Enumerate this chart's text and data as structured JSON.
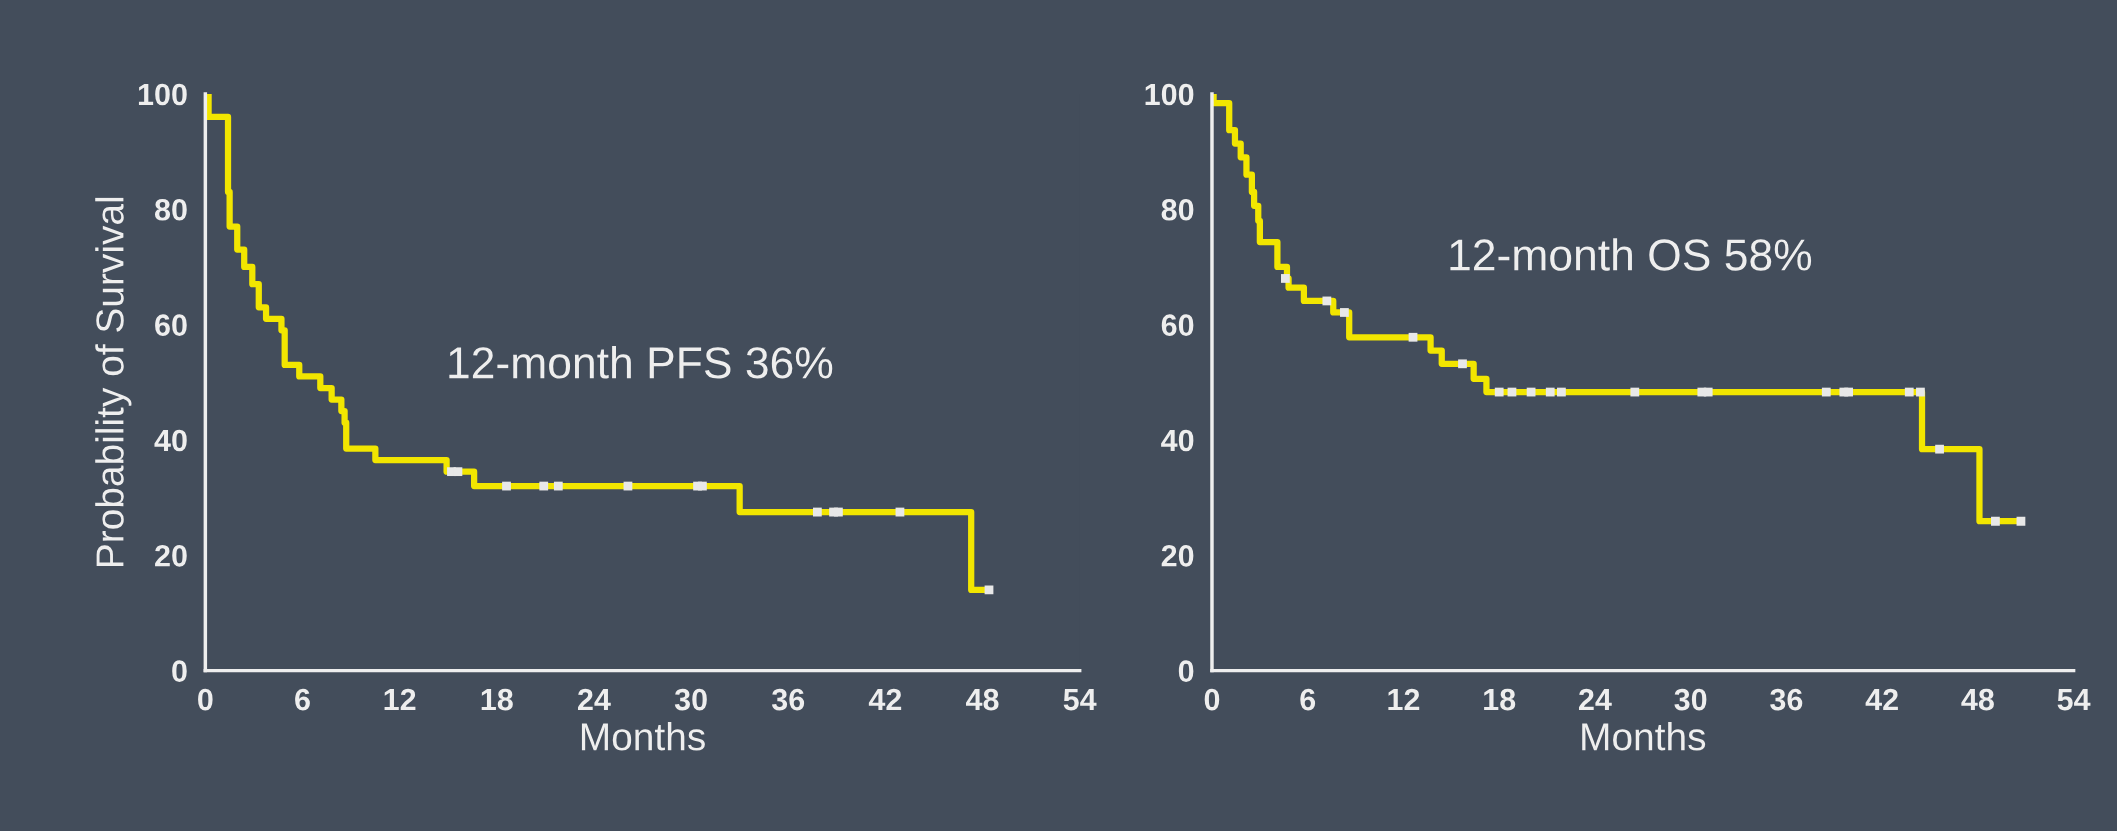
{
  "chart_data": [
    {
      "type": "step",
      "xlabel": "Months",
      "ylabel": "Probability of Survival",
      "xlim": [
        0,
        54
      ],
      "xticks": [
        0,
        6,
        12,
        18,
        24,
        30,
        36,
        42,
        48,
        54
      ],
      "ylim": [
        0,
        100
      ],
      "yticks": [
        0,
        20,
        40,
        60,
        80,
        100
      ],
      "grid": false,
      "legend": false,
      "annotations": [
        "12-month PFS 36%"
      ],
      "series": [
        {
          "type": "step",
          "color": "#f2e600",
          "x": [
            0,
            0.2,
            1.4,
            1.5,
            1.97,
            2.4,
            2.9,
            3.3,
            3.75,
            4.7,
            4.9,
            5.8,
            7.1,
            7.8,
            8.4,
            8.6,
            8.7,
            10.5,
            14.9,
            16.6,
            33.0,
            47.3,
            48.4
          ],
          "values": [
            100,
            96,
            83,
            77,
            73,
            70,
            67,
            63,
            61,
            59,
            53,
            51,
            49,
            47,
            45,
            43,
            38.5,
            36.5,
            34.5,
            32,
            27.5,
            14,
            14
          ]
        },
        {
          "type": "scatter",
          "marker": "square",
          "color": "#e8e8e8",
          "x": [
            15.2,
            15.6,
            18.6,
            20.9,
            21.8,
            26.1,
            30.4,
            30.7,
            37.8,
            38.8,
            39.1,
            42.9,
            48.4
          ],
          "values": [
            34.5,
            34.5,
            32,
            32,
            32,
            32,
            32,
            32,
            27.5,
            27.5,
            27.5,
            27.5,
            14
          ]
        }
      ]
    },
    {
      "type": "step",
      "xlabel": "Months",
      "xlim": [
        0,
        54
      ],
      "xticks": [
        0,
        6,
        12,
        18,
        24,
        30,
        36,
        42,
        48,
        54
      ],
      "ylim": [
        0,
        100
      ],
      "yticks": [
        0,
        20,
        40,
        60,
        80,
        100
      ],
      "grid": false,
      "legend": false,
      "annotations": [
        "12-month OS 58%"
      ],
      "series": [
        {
          "type": "step",
          "color": "#f2e600",
          "x": [
            0,
            0.1,
            1.08,
            1.44,
            1.8,
            2.16,
            2.5,
            2.64,
            2.9,
            3.0,
            4.1,
            4.7,
            4.8,
            5.76,
            7.6,
            8.6,
            13.7,
            14.4,
            16.4,
            17.2,
            44.5,
            48.1,
            50.7
          ],
          "values": [
            100,
            98.4,
            93.7,
            91.4,
            89,
            86,
            83,
            80.6,
            78,
            74.3,
            70,
            68,
            66.4,
            64.1,
            62.1,
            57.8,
            55.5,
            53.2,
            50.6,
            48.3,
            38.4,
            25.9,
            25.9
          ]
        },
        {
          "type": "scatter",
          "marker": "square",
          "color": "#e8e8e8",
          "x": [
            4.6,
            7.2,
            8.3,
            12.6,
            15.7,
            18.0,
            18.8,
            20.0,
            21.2,
            21.9,
            26.5,
            30.7,
            31.1,
            38.5,
            39.6,
            39.9,
            43.7,
            44.4,
            45.6,
            49.1,
            50.7
          ],
          "values": [
            68,
            64.1,
            62.1,
            57.8,
            53.2,
            48.3,
            48.3,
            48.3,
            48.3,
            48.3,
            48.3,
            48.3,
            48.3,
            48.3,
            48.3,
            48.3,
            48.3,
            48.3,
            38.4,
            25.9,
            25.9
          ]
        }
      ]
    }
  ]
}
